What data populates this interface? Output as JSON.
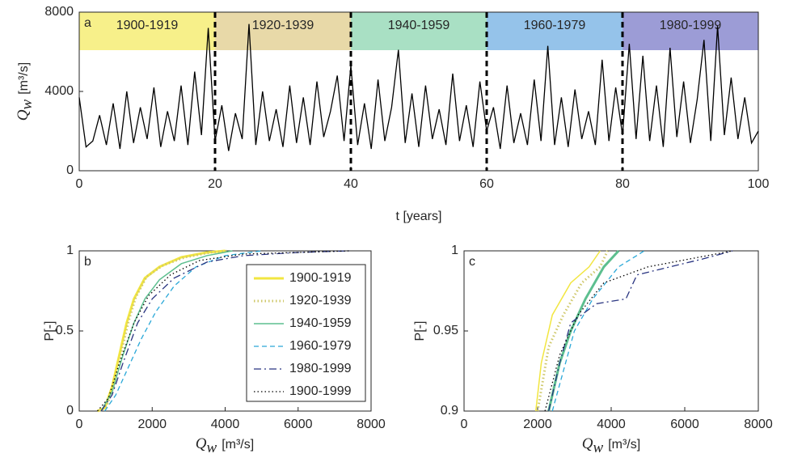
{
  "chart_data": [
    {
      "type": "line",
      "panel_label": "a",
      "xlabel": "t [years]",
      "ylabel": {
        "symbol": "Q",
        "subscript": "w",
        "unit": "[m³/s]"
      },
      "xlim": [
        0,
        100
      ],
      "xticks": [
        0,
        20,
        40,
        60,
        80,
        100
      ],
      "ylim": [
        0,
        8000
      ],
      "yticks": [
        0,
        4000,
        8000
      ],
      "periods": [
        {
          "label": "1900-1919",
          "start": 0,
          "end": 20,
          "color": "#f7f08a"
        },
        {
          "label": "1920-1939",
          "start": 20,
          "end": 40,
          "color": "#e8d9a8"
        },
        {
          "label": "1940-1959",
          "start": 40,
          "end": 60,
          "color": "#a9e0c4"
        },
        {
          "label": "1960-1979",
          "start": 60,
          "end": 80,
          "color": "#95c3ea"
        },
        {
          "label": "1980-1999",
          "start": 80,
          "end": 100,
          "color": "#9c9cd6"
        }
      ],
      "series": [
        {
          "color": "#000000",
          "linestyle": "solid",
          "linewidth": 1.3,
          "x": [
            0,
            1,
            2,
            3,
            4,
            5,
            6,
            7,
            8,
            9,
            10,
            11,
            12,
            13,
            14,
            15,
            16,
            17,
            18,
            19,
            20,
            21,
            22,
            23,
            24,
            25,
            26,
            27,
            28,
            29,
            30,
            31,
            32,
            33,
            34,
            35,
            36,
            37,
            38,
            39,
            40,
            41,
            42,
            43,
            44,
            45,
            46,
            47,
            48,
            49,
            50,
            51,
            52,
            53,
            54,
            55,
            56,
            57,
            58,
            59,
            60,
            61,
            62,
            63,
            64,
            65,
            66,
            67,
            68,
            69,
            70,
            71,
            72,
            73,
            74,
            75,
            76,
            77,
            78,
            79,
            80,
            81,
            82,
            83,
            84,
            85,
            86,
            87,
            88,
            89,
            90,
            91,
            92,
            93,
            94,
            95,
            96,
            97,
            98,
            99,
            100
          ],
          "values": [
            3700,
            1200,
            1500,
            2800,
            1300,
            3400,
            1100,
            4000,
            1400,
            3200,
            1600,
            4200,
            1200,
            3000,
            1500,
            4300,
            1300,
            5000,
            1800,
            7200,
            1500,
            3300,
            1000,
            2900,
            1600,
            7400,
            1300,
            4000,
            1500,
            3100,
            1200,
            4300,
            1400,
            3700,
            1300,
            4500,
            1700,
            3000,
            4800,
            1500,
            5300,
            1300,
            3400,
            1100,
            4600,
            1500,
            3200,
            6100,
            1400,
            3900,
            1200,
            4300,
            1600,
            3100,
            1300,
            4900,
            1500,
            3300,
            1200,
            4500,
            2000,
            3200,
            1100,
            4300,
            1400,
            2900,
            1300,
            4600,
            1500,
            6300,
            1300,
            3700,
            1200,
            4100,
            1600,
            3000,
            1300,
            5600,
            1500,
            4200,
            1800,
            6400,
            1600,
            5800,
            1500,
            4300,
            1200,
            6200,
            1700,
            4500,
            1400,
            3600,
            6600,
            1500,
            7300,
            1800,
            4700,
            1600,
            3700,
            1400,
            2000
          ]
        }
      ]
    },
    {
      "type": "line",
      "panel_label": "b",
      "xlabel": {
        "symbol": "Q",
        "subscript": "w",
        "unit": "[m³/s]"
      },
      "ylabel": "P[-]",
      "xlim": [
        0,
        8000
      ],
      "xticks": [
        0,
        2000,
        4000,
        6000,
        8000
      ],
      "ylim": [
        0,
        1
      ],
      "yticks": [
        0,
        0.5,
        1
      ],
      "legend": "right",
      "series": [
        {
          "name": "1900-1919",
          "color": "#f2e640",
          "linestyle": "solid",
          "linewidth": 3,
          "x": [
            500,
            700,
            900,
            1100,
            1300,
            1500,
            1800,
            2200,
            2800,
            3500,
            4000
          ],
          "values": [
            0,
            0.02,
            0.15,
            0.35,
            0.55,
            0.7,
            0.83,
            0.9,
            0.96,
            0.99,
            1
          ]
        },
        {
          "name": "1920-1939",
          "color": "#cfc86a",
          "linestyle": "dotted",
          "linewidth": 3,
          "x": [
            550,
            750,
            950,
            1150,
            1350,
            1550,
            1850,
            2300,
            2900,
            3600,
            4100
          ],
          "values": [
            0,
            0.03,
            0.16,
            0.36,
            0.56,
            0.71,
            0.84,
            0.91,
            0.96,
            0.99,
            1
          ]
        },
        {
          "name": "1940-1959",
          "color": "#5dbf8f",
          "linestyle": "solid",
          "linewidth": 1.5,
          "x": [
            600,
            900,
            1200,
            1500,
            1800,
            2200,
            2800,
            3500,
            4200
          ],
          "values": [
            0,
            0.12,
            0.35,
            0.55,
            0.7,
            0.82,
            0.92,
            0.97,
            1
          ]
        },
        {
          "name": "1960-1979",
          "color": "#2aa8d8",
          "linestyle": "dashed",
          "linewidth": 1.3,
          "x": [
            700,
            1000,
            1300,
            1700,
            2100,
            2600,
            3200,
            4000,
            5000
          ],
          "values": [
            0,
            0.1,
            0.25,
            0.45,
            0.62,
            0.78,
            0.9,
            0.97,
            1
          ]
        },
        {
          "name": "1980-1999",
          "color": "#283380",
          "linestyle": "dashdot",
          "linewidth": 1.3,
          "x": [
            600,
            900,
            1200,
            1600,
            2000,
            2600,
            3500,
            4500,
            6000,
            7400
          ],
          "values": [
            0,
            0.1,
            0.3,
            0.55,
            0.7,
            0.83,
            0.93,
            0.97,
            0.99,
            1
          ]
        },
        {
          "name": "1900-1999",
          "color": "#000000",
          "linestyle": "dotted",
          "linewidth": 1.3,
          "x": [
            500,
            800,
            1100,
            1500,
            1900,
            2500,
            3300,
            4500,
            7400
          ],
          "values": [
            0,
            0.08,
            0.3,
            0.55,
            0.72,
            0.85,
            0.94,
            0.98,
            1
          ]
        }
      ]
    },
    {
      "type": "line",
      "panel_label": "c",
      "xlabel": {
        "symbol": "Q",
        "subscript": "w",
        "unit": "[m³/s]"
      },
      "ylabel": "P[-]",
      "xlim": [
        0,
        8000
      ],
      "xticks": [
        0,
        2000,
        4000,
        6000,
        8000
      ],
      "ylim": [
        0.9,
        1
      ],
      "yticks": [
        0.9,
        0.95,
        1
      ],
      "series": [
        {
          "color": "#f2e640",
          "linestyle": "solid",
          "linewidth": 1.5,
          "x": [
            1950,
            2100,
            2400,
            2900,
            3400,
            3700
          ],
          "values": [
            0.9,
            0.93,
            0.96,
            0.98,
            0.99,
            1
          ]
        },
        {
          "color": "#cfc86a",
          "linestyle": "dotted",
          "linewidth": 3,
          "x": [
            2000,
            2300,
            2700,
            3200,
            3700,
            3900
          ],
          "values": [
            0.9,
            0.94,
            0.96,
            0.98,
            0.99,
            1
          ]
        },
        {
          "color": "#5dbf8f",
          "linestyle": "solid",
          "linewidth": 3,
          "x": [
            2300,
            2600,
            2900,
            3300,
            3800,
            4200
          ],
          "values": [
            0.9,
            0.93,
            0.95,
            0.97,
            0.99,
            1
          ]
        },
        {
          "color": "#2aa8d8",
          "linestyle": "dashed",
          "linewidth": 1.3,
          "x": [
            2400,
            2700,
            3000,
            3500,
            4200,
            4900
          ],
          "values": [
            0.9,
            0.925,
            0.95,
            0.97,
            0.99,
            1
          ]
        },
        {
          "color": "#283380",
          "linestyle": "dashdot",
          "linewidth": 1.3,
          "x": [
            2300,
            2600,
            2900,
            3600,
            4400,
            4700,
            6500,
            7300
          ],
          "values": [
            0.9,
            0.93,
            0.955,
            0.967,
            0.97,
            0.985,
            0.995,
            1
          ]
        },
        {
          "color": "#000000",
          "linestyle": "dotted",
          "linewidth": 1.3,
          "x": [
            2200,
            2600,
            3100,
            3800,
            5000,
            7300
          ],
          "values": [
            0.9,
            0.935,
            0.96,
            0.98,
            0.99,
            1
          ]
        }
      ]
    }
  ]
}
